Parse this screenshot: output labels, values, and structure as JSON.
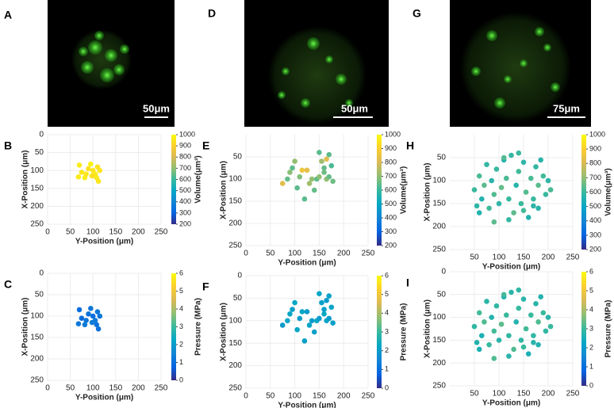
{
  "images": [
    {
      "panel": "A",
      "scale_bar": "50μm"
    },
    {
      "panel": "D",
      "scale_bar": "50μm"
    },
    {
      "panel": "G",
      "scale_bar": "75μm"
    }
  ],
  "chart_data": [
    {
      "type": "scatter",
      "panel": "B",
      "xlabel": "Y-Position (μm)",
      "ylabel": "X-Position (μm)",
      "xlim": [
        0,
        250
      ],
      "ylim": [
        0,
        250
      ],
      "yreverse": true,
      "xticks": [
        0,
        50,
        100,
        150,
        200,
        250
      ],
      "yticks": [
        0,
        50,
        100,
        150,
        200,
        250
      ],
      "grid": true,
      "colormap": "parula",
      "x": [
        68,
        75,
        82,
        90,
        95,
        100,
        105,
        110,
        112,
        70,
        85,
        98,
        108,
        115
      ],
      "y": [
        118,
        105,
        120,
        95,
        82,
        100,
        110,
        90,
        130,
        85,
        110,
        115,
        120,
        100
      ],
      "c": [
        960,
        950,
        970,
        940,
        980,
        950,
        960,
        945,
        955,
        965,
        950,
        940,
        960,
        950
      ],
      "colorbar": {
        "label": "Volume(μm³)",
        "lim": [
          200,
          1000
        ],
        "ticks": [
          200,
          300,
          400,
          500,
          600,
          700,
          800,
          900,
          1000
        ]
      }
    },
    {
      "type": "scatter",
      "panel": "C",
      "xlabel": "Y-Position (μm)",
      "ylabel": "X-Position (μm)",
      "xlim": [
        0,
        250
      ],
      "ylim": [
        0,
        250
      ],
      "yreverse": true,
      "xticks": [
        0,
        50,
        100,
        150,
        200,
        250
      ],
      "yticks": [
        0,
        50,
        100,
        150,
        200,
        250
      ],
      "grid": true,
      "colormap": "parula",
      "x": [
        68,
        75,
        82,
        90,
        95,
        100,
        105,
        110,
        112,
        70,
        85,
        98,
        108,
        115
      ],
      "y": [
        118,
        105,
        120,
        95,
        82,
        100,
        110,
        90,
        130,
        85,
        110,
        115,
        120,
        100
      ],
      "c": [
        1.2,
        1.0,
        1.3,
        1.1,
        1.2,
        1.0,
        1.3,
        1.2,
        1.1,
        1.0,
        1.2,
        1.3,
        1.1,
        1.2
      ],
      "colorbar": {
        "label": "Pressure (MPa)",
        "lim": [
          0,
          6
        ],
        "ticks": [
          0,
          1,
          2,
          3,
          4,
          5,
          6
        ]
      }
    },
    {
      "type": "scatter",
      "panel": "E",
      "xlabel": "Y-Position (μm)",
      "ylabel": "X-Position (μm)",
      "xlim": [
        0,
        250
      ],
      "ylim": [
        0,
        250
      ],
      "yreverse": true,
      "xticks": [
        0,
        50,
        100,
        150,
        200,
        250
      ],
      "yticks": [
        50,
        100,
        150,
        200,
        250
      ],
      "grid": true,
      "colormap": "parula",
      "x": [
        75,
        85,
        95,
        100,
        110,
        115,
        120,
        125,
        130,
        140,
        145,
        150,
        150,
        155,
        160,
        165,
        165,
        170,
        170,
        175,
        178,
        105,
        135,
        90,
        160
      ],
      "y": [
        110,
        100,
        75,
        60,
        95,
        80,
        145,
        80,
        110,
        125,
        100,
        95,
        40,
        60,
        85,
        55,
        100,
        45,
        95,
        70,
        105,
        120,
        100,
        85,
        75
      ],
      "c": [
        820,
        650,
        640,
        700,
        680,
        860,
        640,
        830,
        720,
        650,
        640,
        700,
        640,
        720,
        660,
        820,
        700,
        640,
        650,
        620,
        660,
        640,
        700,
        690,
        650
      ],
      "colorbar": {
        "label": "Volume(μm³)",
        "lim": [
          200,
          1000
        ],
        "ticks": [
          200,
          300,
          400,
          500,
          600,
          700,
          800,
          900,
          1000
        ]
      }
    },
    {
      "type": "scatter",
      "panel": "F",
      "xlabel": "Y-Position (μm)",
      "ylabel": "X-Position (μm)",
      "xlim": [
        0,
        250
      ],
      "ylim": [
        0,
        250
      ],
      "yreverse": true,
      "xticks": [
        0,
        50,
        100,
        150,
        200,
        250
      ],
      "yticks": [
        0,
        50,
        100,
        150,
        200,
        250
      ],
      "grid": true,
      "colormap": "parula",
      "x": [
        75,
        85,
        95,
        100,
        110,
        115,
        120,
        125,
        130,
        140,
        145,
        150,
        150,
        155,
        160,
        165,
        165,
        170,
        170,
        175,
        178,
        105,
        135,
        90,
        160
      ],
      "y": [
        110,
        100,
        75,
        60,
        95,
        80,
        145,
        80,
        110,
        125,
        100,
        95,
        40,
        60,
        85,
        55,
        100,
        45,
        95,
        70,
        105,
        120,
        100,
        85,
        75
      ],
      "c": [
        2.0,
        2.2,
        2.1,
        2.3,
        2.0,
        2.2,
        2.1,
        2.0,
        2.2,
        2.1,
        2.3,
        2.0,
        2.2,
        2.1,
        2.3,
        2.0,
        2.2,
        2.1,
        2.0,
        2.2,
        2.1,
        2.3,
        2.0,
        2.2,
        2.1
      ],
      "colorbar": {
        "label": "Pressure (MPa)",
        "lim": [
          0,
          6
        ],
        "ticks": [
          0,
          1,
          2,
          3,
          4,
          5,
          6
        ]
      }
    },
    {
      "type": "scatter",
      "panel": "H",
      "xlabel": "Y-Position (μm)",
      "ylabel": "X-Position (μm)",
      "xlim": [
        0,
        250
      ],
      "ylim": [
        0,
        250
      ],
      "yreverse": true,
      "xticks": [
        50,
        100,
        150,
        200,
        250
      ],
      "yticks": [
        50,
        100,
        150,
        200,
        250
      ],
      "grid": true,
      "colormap": "parula",
      "x": [
        50,
        55,
        60,
        65,
        70,
        75,
        80,
        85,
        90,
        95,
        100,
        105,
        110,
        115,
        120,
        125,
        130,
        135,
        140,
        145,
        150,
        155,
        160,
        165,
        170,
        175,
        180,
        185,
        190,
        195,
        200,
        205,
        60,
        90,
        120,
        150,
        180,
        110,
        140,
        170
      ],
      "y": [
        120,
        155,
        90,
        140,
        110,
        65,
        160,
        100,
        130,
        75,
        150,
        115,
        55,
        95,
        140,
        45,
        170,
        110,
        80,
        150,
        60,
        125,
        180,
        95,
        140,
        70,
        110,
        55,
        90,
        130,
        100,
        120,
        170,
        190,
        185,
        165,
        160,
        50,
        40,
        155
      ],
      "c": [
        600,
        580,
        620,
        560,
        640,
        590,
        610,
        570,
        630,
        600,
        580,
        650,
        560,
        620,
        600,
        590,
        640,
        570,
        610,
        600,
        580,
        630,
        560,
        620,
        600,
        590,
        640,
        570,
        610,
        600,
        580,
        620,
        560,
        640,
        590,
        610,
        570,
        630,
        600,
        580
      ],
      "colorbar": {
        "label": "Volume(μm³)",
        "lim": [
          200,
          1000
        ],
        "ticks": [
          200,
          300,
          400,
          500,
          600,
          700,
          800,
          900,
          1000
        ]
      }
    },
    {
      "type": "scatter",
      "panel": "I",
      "xlabel": "Y-Position (μm)",
      "ylabel": "X-Position (μm)",
      "xlim": [
        0,
        250
      ],
      "ylim": [
        0,
        250
      ],
      "yreverse": true,
      "xticks": [
        50,
        100,
        150,
        200,
        250
      ],
      "yticks": [
        0,
        50,
        100,
        150,
        200,
        250
      ],
      "grid": true,
      "colormap": "parula",
      "x": [
        50,
        55,
        60,
        65,
        70,
        75,
        80,
        85,
        90,
        95,
        100,
        105,
        110,
        115,
        120,
        125,
        130,
        135,
        140,
        145,
        150,
        155,
        160,
        165,
        170,
        175,
        180,
        185,
        190,
        195,
        200,
        205,
        60,
        90,
        120,
        150,
        180,
        110,
        140,
        170
      ],
      "y": [
        120,
        155,
        90,
        140,
        110,
        65,
        160,
        100,
        130,
        75,
        150,
        115,
        55,
        95,
        140,
        45,
        170,
        110,
        80,
        150,
        60,
        125,
        180,
        95,
        140,
        70,
        110,
        55,
        90,
        130,
        100,
        120,
        170,
        190,
        185,
        165,
        160,
        50,
        40,
        155
      ],
      "c": [
        2.9,
        2.7,
        3.1,
        2.6,
        3.2,
        2.8,
        3.0,
        2.7,
        3.1,
        2.9,
        2.8,
        3.3,
        2.6,
        3.0,
        2.9,
        2.8,
        3.2,
        2.7,
        3.0,
        2.9,
        2.8,
        3.1,
        2.6,
        3.0,
        2.9,
        2.8,
        3.2,
        2.7,
        3.0,
        2.9,
        2.8,
        3.0,
        2.6,
        3.2,
        2.8,
        3.0,
        2.7,
        3.1,
        2.9,
        2.8
      ],
      "colorbar": {
        "label": "Pressure (MPa)",
        "lim": [
          0,
          6
        ],
        "ticks": [
          0,
          1,
          2,
          3,
          4,
          5,
          6
        ]
      }
    }
  ]
}
